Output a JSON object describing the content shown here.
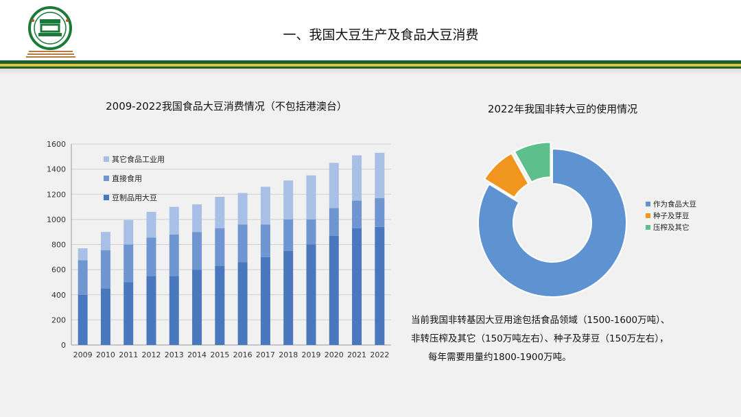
{
  "header": {
    "title": "一、我国大豆生产及食品大豆消费"
  },
  "colors": {
    "green": "#1b5e2f",
    "gold": "#e3c436",
    "bar_base": "#4a78bf",
    "bar_mid": "#6f96d0",
    "bar_top": "#a9c0e6",
    "donut_food": "#5e92d0",
    "donut_seed": "#f0961e",
    "donut_other": "#5dbf8c"
  },
  "chart_data": [
    {
      "type": "bar",
      "stacked": true,
      "title": "2009-2022我国食品大豆消费情况（不包括港澳台）",
      "categories": [
        "2009",
        "2010",
        "2011",
        "2012",
        "2013",
        "2014",
        "2015",
        "2016",
        "2017",
        "2018",
        "2019",
        "2020",
        "2021",
        "2022"
      ],
      "series": [
        {
          "name": "豆制品用大豆",
          "values": [
            400,
            450,
            500,
            550,
            550,
            600,
            630,
            660,
            700,
            750,
            800,
            870,
            930,
            940
          ]
        },
        {
          "name": "直接食用",
          "values": [
            275,
            305,
            300,
            305,
            330,
            300,
            300,
            300,
            260,
            250,
            200,
            220,
            220,
            230
          ]
        },
        {
          "name": "其它食品工业用",
          "values": [
            95,
            145,
            195,
            205,
            220,
            220,
            250,
            250,
            300,
            310,
            350,
            360,
            360,
            360
          ]
        }
      ],
      "ylim": [
        0,
        1600
      ],
      "yticks": [
        0,
        200,
        400,
        600,
        800,
        1000,
        1200,
        1400,
        1600
      ],
      "legend_position": "top-left",
      "grid": true
    },
    {
      "type": "pie",
      "donut": true,
      "title": "2022年我国非转大豆的使用情况",
      "labels": [
        "作为食品大豆",
        "种子及芽豆",
        "压榨及其它"
      ],
      "values": [
        1550,
        150,
        150
      ],
      "exploded": true,
      "legend_position": "right"
    }
  ],
  "note": {
    "line1": "当前我国非转基因大豆用途包括食品领域（1500-1600万吨）、",
    "line2": "非转压榨及其它（150万吨左右）、种子及芽豆（150万左右），",
    "line3": "每年需要用量约1800-1900万吨。"
  }
}
